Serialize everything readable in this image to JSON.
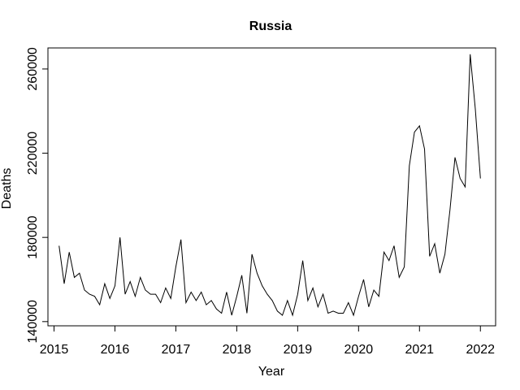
{
  "chart_data": {
    "type": "line",
    "title": "Russia",
    "xlabel": "Year",
    "ylabel": "Deaths",
    "xlim": [
      2014.9,
      2022.25
    ],
    "ylim": [
      138000,
      270000
    ],
    "x_ticks": [
      2015,
      2016,
      2017,
      2018,
      2019,
      2020,
      2021,
      2022
    ],
    "x_tick_labels": [
      "2015",
      "2016",
      "2017",
      "2018",
      "2019",
      "2020",
      "2021",
      "2022"
    ],
    "y_ticks": [
      140000,
      180000,
      220000,
      260000
    ],
    "y_tick_labels": [
      "140000",
      "180000",
      "220000",
      "260000"
    ],
    "grid": false,
    "series": [
      {
        "name": "",
        "color": "#000000",
        "x": [
          2015.083,
          2015.167,
          2015.25,
          2015.333,
          2015.417,
          2015.5,
          2015.583,
          2015.667,
          2015.75,
          2015.833,
          2015.917,
          2016.0,
          2016.083,
          2016.167,
          2016.25,
          2016.333,
          2016.417,
          2016.5,
          2016.583,
          2016.667,
          2016.75,
          2016.833,
          2016.917,
          2017.0,
          2017.083,
          2017.167,
          2017.25,
          2017.333,
          2017.417,
          2017.5,
          2017.583,
          2017.667,
          2017.75,
          2017.833,
          2017.917,
          2018.0,
          2018.083,
          2018.167,
          2018.25,
          2018.333,
          2018.417,
          2018.5,
          2018.583,
          2018.667,
          2018.75,
          2018.833,
          2018.917,
          2019.0,
          2019.083,
          2019.167,
          2019.25,
          2019.333,
          2019.417,
          2019.5,
          2019.583,
          2019.667,
          2019.75,
          2019.833,
          2019.917,
          2020.0,
          2020.083,
          2020.167,
          2020.25,
          2020.333,
          2020.417,
          2020.5,
          2020.583,
          2020.667,
          2020.75,
          2020.833,
          2020.917,
          2021.0,
          2021.083,
          2021.167,
          2021.25,
          2021.333,
          2021.417,
          2021.5,
          2021.583,
          2021.667,
          2021.75,
          2021.833,
          2021.917,
          2022.0
        ],
        "values": [
          176000,
          158000,
          173000,
          161000,
          163000,
          155000,
          153000,
          152000,
          148000,
          158000,
          151000,
          157000,
          180000,
          153000,
          159000,
          152000,
          161000,
          155000,
          153000,
          153000,
          149000,
          156000,
          151000,
          166000,
          179000,
          149000,
          154000,
          150000,
          154000,
          148000,
          150000,
          146000,
          144000,
          154000,
          143000,
          152000,
          162000,
          144000,
          172000,
          163000,
          157000,
          153000,
          150000,
          145000,
          143000,
          150000,
          143000,
          153000,
          169000,
          150000,
          156000,
          147000,
          153000,
          144000,
          145000,
          144000,
          144000,
          149000,
          143000,
          152000,
          160000,
          147000,
          155000,
          152000,
          173000,
          169000,
          176000,
          161000,
          166000,
          214000,
          230000,
          233000,
          222000,
          171000,
          177000,
          163000,
          172000,
          193000,
          218000,
          208000,
          204000,
          267000,
          241000,
          208000
        ]
      }
    ]
  }
}
